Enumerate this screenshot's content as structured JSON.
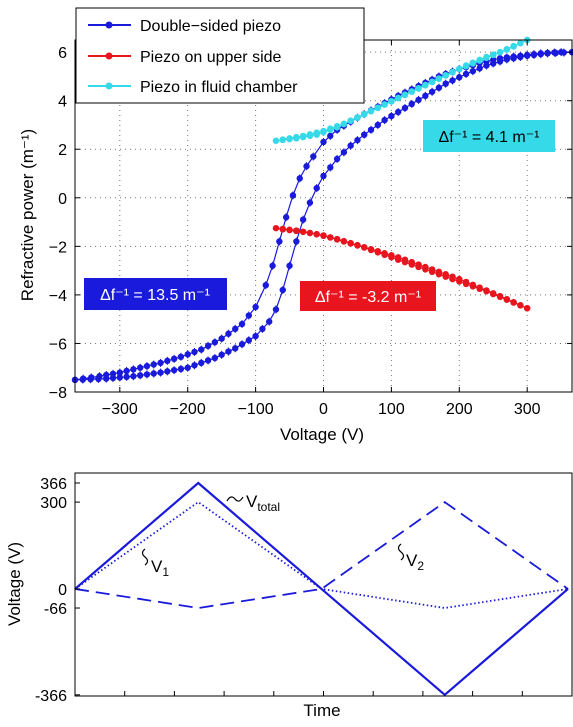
{
  "chart_data": [
    {
      "type": "line",
      "xlabel": "Voltage (V)",
      "ylabel": "Refractive power (m⁻¹)",
      "xlim": [
        -366,
        366
      ],
      "ylim": [
        -8,
        6.5
      ],
      "xticks": [
        "-300",
        "-200",
        "-100",
        "0",
        "100",
        "200",
        "300"
      ],
      "yticks": [
        "-8",
        "-6",
        "-4",
        "-2",
        "0",
        "2",
        "4",
        "6"
      ],
      "grid": "dotted",
      "legend_position": "top-left",
      "series": [
        {
          "name": "Double−sided piezo",
          "color": "#1a1adc",
          "x_up": [
            -366,
            -330,
            -300,
            -270,
            -240,
            -210,
            -180,
            -150,
            -120,
            -100,
            -85,
            -75,
            -65,
            -55,
            -45,
            -35,
            -25,
            -15,
            0,
            20,
            50,
            80,
            110,
            140,
            170,
            200,
            230,
            260,
            290,
            320,
            350,
            366
          ],
          "y_up": [
            -7.5,
            -7.35,
            -7.2,
            -7.0,
            -6.8,
            -6.55,
            -6.25,
            -5.8,
            -5.2,
            -4.5,
            -3.6,
            -2.8,
            -1.8,
            -0.8,
            0.1,
            0.8,
            1.3,
            1.7,
            2.3,
            2.8,
            3.3,
            3.75,
            4.2,
            4.6,
            5.0,
            5.3,
            5.55,
            5.75,
            5.85,
            5.95,
            6.0,
            6.0
          ],
          "x_down": [
            366,
            330,
            300,
            270,
            240,
            210,
            180,
            150,
            120,
            90,
            60,
            40,
            20,
            0,
            -10,
            -20,
            -30,
            -40,
            -50,
            -60,
            -70,
            -80,
            -100,
            -130,
            -160,
            -200,
            -240,
            -280,
            -320,
            -366
          ],
          "y_down": [
            6.0,
            5.95,
            5.85,
            5.7,
            5.45,
            5.1,
            4.7,
            4.2,
            3.7,
            3.2,
            2.6,
            2.15,
            1.6,
            0.9,
            0.4,
            -0.2,
            -0.9,
            -1.8,
            -2.8,
            -3.8,
            -4.6,
            -5.1,
            -5.7,
            -6.2,
            -6.6,
            -7.0,
            -7.2,
            -7.35,
            -7.45,
            -7.5
          ]
        },
        {
          "name": "Piezo on upper side",
          "color": "#e8141e",
          "x_up": [
            -70,
            -40,
            -10,
            20,
            50,
            80,
            110,
            140,
            170,
            200,
            230,
            260,
            300
          ],
          "y_up": [
            -1.25,
            -1.35,
            -1.5,
            -1.7,
            -1.95,
            -2.2,
            -2.45,
            -2.75,
            -3.05,
            -3.35,
            -3.7,
            -4.05,
            -4.55
          ],
          "x_down": [
            300,
            270,
            240,
            210,
            180,
            150,
            120,
            90,
            60,
            30,
            0,
            -30,
            -60
          ],
          "y_down": [
            -4.55,
            -4.2,
            -3.85,
            -3.55,
            -3.25,
            -2.95,
            -2.65,
            -2.35,
            -2.05,
            -1.8,
            -1.55,
            -1.4,
            -1.3
          ]
        },
        {
          "name": "Piezo in fluid chamber",
          "color": "#36d9e8",
          "x_up": [
            -70,
            -40,
            -10,
            20,
            50,
            80,
            110,
            140,
            170,
            200,
            230,
            260,
            300
          ],
          "y_up": [
            2.35,
            2.45,
            2.6,
            2.9,
            3.3,
            3.7,
            4.1,
            4.5,
            4.9,
            5.3,
            5.65,
            6.0,
            6.5
          ],
          "x_down": [
            300,
            270,
            240,
            210,
            180,
            150,
            120,
            90,
            60,
            30,
            0,
            -30,
            -60
          ],
          "y_down": [
            6.5,
            6.1,
            5.8,
            5.45,
            5.05,
            4.65,
            4.25,
            3.85,
            3.45,
            3.05,
            2.75,
            2.55,
            2.4
          ]
        }
      ],
      "annotations": [
        {
          "text": "Δf⁻¹ = 13.5 m⁻¹",
          "bg": "#1a1adc"
        },
        {
          "text": "Δf⁻¹ = -3.2 m⁻¹",
          "bg": "#e8141e"
        },
        {
          "text": "Δf⁻¹ = 4.1 m⁻¹",
          "bg": "#36d9e8"
        }
      ]
    },
    {
      "type": "line",
      "xlabel": "Time",
      "ylabel": "Voltage (V)",
      "ylim": [
        -366,
        366
      ],
      "yticks": [
        "366",
        "300",
        "0",
        "-66",
        "-366"
      ],
      "ytick_values": [
        366,
        300,
        0,
        -66,
        -366
      ],
      "color": "#1a1adc",
      "x": [
        0,
        1,
        2,
        3,
        4
      ],
      "series": [
        {
          "name": "V_total",
          "style": "solid",
          "values": [
            0,
            366,
            0,
            -366,
            0
          ]
        },
        {
          "name": "V_1",
          "style": "dotted",
          "values": [
            0,
            300,
            0,
            -66,
            0
          ]
        },
        {
          "name": "V_2",
          "style": "dashed",
          "values": [
            0,
            -66,
            0,
            300,
            0
          ]
        }
      ],
      "labels": {
        "vtotal": "V",
        "vtotal_sub": "total",
        "v1": "V",
        "v1_sub": "1",
        "v2": "V",
        "v2_sub": "2"
      }
    }
  ]
}
